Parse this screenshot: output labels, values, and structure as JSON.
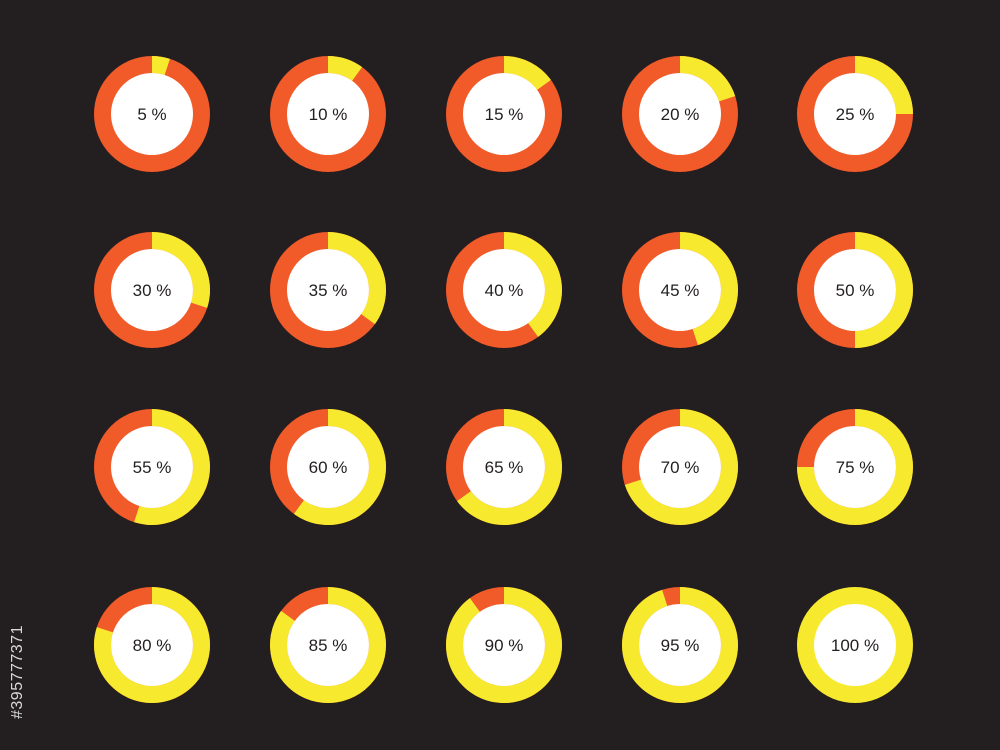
{
  "colors": {
    "background": "#231f20",
    "filled": "#f7ea2e",
    "remaining": "#f15a29",
    "center": "#ffffff",
    "label": "#231f20",
    "stock_id": "#d9d9d9"
  },
  "stock_id": "#395777371",
  "chart_data": {
    "type": "pie",
    "variant": "donut-grid",
    "grid": {
      "rows": 4,
      "columns": 5
    },
    "items": [
      {
        "value": 5,
        "label": "5 %"
      },
      {
        "value": 10,
        "label": "10 %"
      },
      {
        "value": 15,
        "label": "15 %"
      },
      {
        "value": 20,
        "label": "20 %"
      },
      {
        "value": 25,
        "label": "25 %"
      },
      {
        "value": 30,
        "label": "30 %"
      },
      {
        "value": 35,
        "label": "35 %"
      },
      {
        "value": 40,
        "label": "40 %"
      },
      {
        "value": 45,
        "label": "45 %"
      },
      {
        "value": 50,
        "label": "50 %"
      },
      {
        "value": 55,
        "label": "55 %"
      },
      {
        "value": 60,
        "label": "60 %"
      },
      {
        "value": 65,
        "label": "65 %"
      },
      {
        "value": 70,
        "label": "70 %"
      },
      {
        "value": 75,
        "label": "75 %"
      },
      {
        "value": 80,
        "label": "80 %"
      },
      {
        "value": 85,
        "label": "85 %"
      },
      {
        "value": 90,
        "label": "90 %"
      },
      {
        "value": 95,
        "label": "95 %"
      },
      {
        "value": 100,
        "label": "100 %"
      }
    ]
  }
}
